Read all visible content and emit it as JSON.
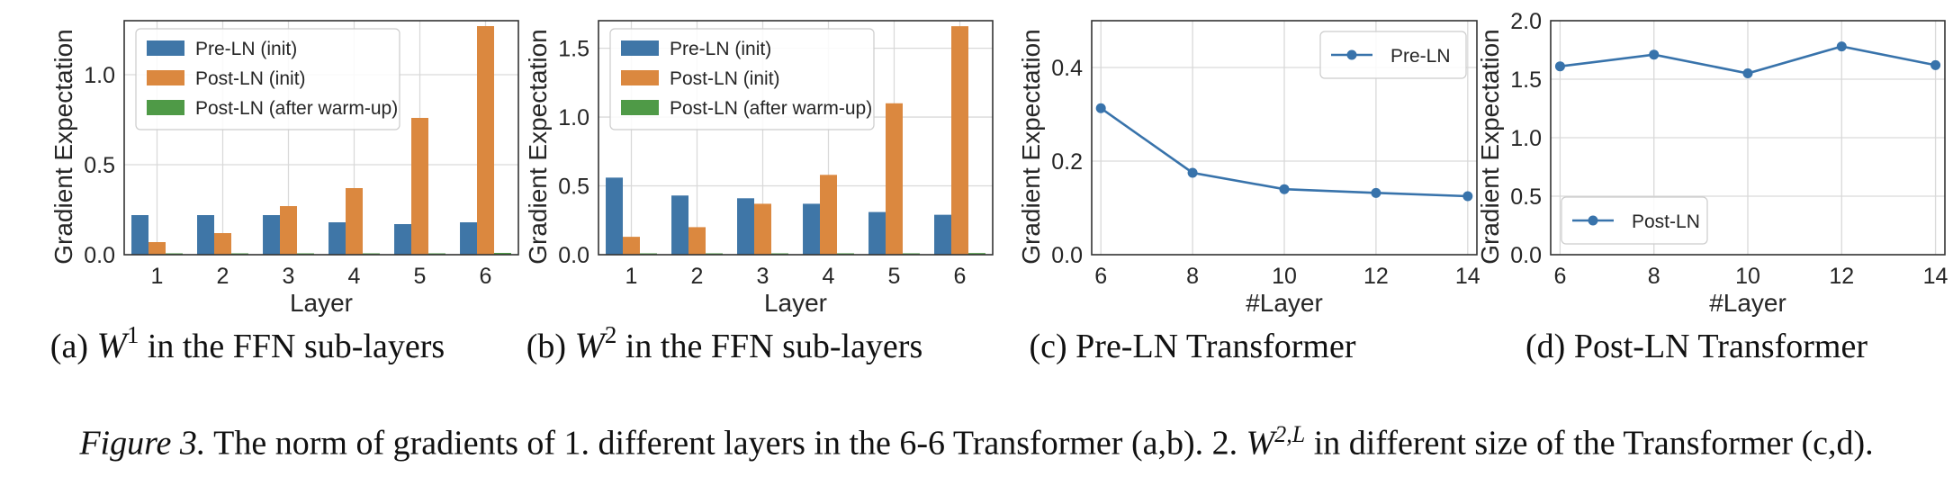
{
  "colors": {
    "pre_ln": "#3f76a7",
    "post_ln_init": "#db883f",
    "post_ln_warmup": "#4f9a47",
    "line": "#3873ab",
    "grid": "#d9d9d9",
    "frame": "#333333"
  },
  "caption": {
    "label": "Figure 3.",
    "text_before": " The norm of gradients of 1. different layers in the 6-6 Transformer (a,b). 2. ",
    "math_base": "W",
    "math_sup": "2,L",
    "text_after": " in different size of the Transformer (c,d)."
  },
  "chart_data": [
    {
      "id": "a",
      "type": "bar",
      "subcaption": {
        "prefix": "(a)",
        "math_base": "W",
        "math_sup": "1",
        "text": "in the FFN sub-layers"
      },
      "xlabel": "Layer",
      "ylabel": "Gradient Expectation",
      "ylim": [
        0,
        1.3
      ],
      "yticks": [
        0.0,
        0.5,
        1.0
      ],
      "ytick_labels": [
        "0.0",
        "0.5",
        "1.0"
      ],
      "grid": true,
      "legend_position": "top-left",
      "categories": [
        "1",
        "2",
        "3",
        "4",
        "5",
        "6"
      ],
      "series": [
        {
          "name": "Pre-LN (init)",
          "values": [
            0.22,
            0.22,
            0.22,
            0.18,
            0.17,
            0.18
          ]
        },
        {
          "name": "Post-LN (init)",
          "values": [
            0.07,
            0.12,
            0.27,
            0.37,
            0.76,
            1.27
          ]
        },
        {
          "name": "Post-LN (after warm-up)",
          "values": [
            0.003,
            0.003,
            0.004,
            0.004,
            0.006,
            0.01
          ]
        }
      ]
    },
    {
      "id": "b",
      "type": "bar",
      "subcaption": {
        "prefix": "(b)",
        "math_base": "W",
        "math_sup": "2",
        "text": "in the FFN sub-layers"
      },
      "xlabel": "Layer",
      "ylabel": "Gradient Expectation",
      "ylim": [
        0,
        1.7
      ],
      "yticks": [
        0.0,
        0.5,
        1.0,
        1.5
      ],
      "ytick_labels": [
        "0.0",
        "0.5",
        "1.0",
        "1.5"
      ],
      "grid": true,
      "legend_position": "top-left",
      "categories": [
        "1",
        "2",
        "3",
        "4",
        "5",
        "6"
      ],
      "series": [
        {
          "name": "Pre-LN (init)",
          "values": [
            0.56,
            0.43,
            0.41,
            0.37,
            0.31,
            0.29
          ]
        },
        {
          "name": "Post-LN (init)",
          "values": [
            0.13,
            0.2,
            0.37,
            0.58,
            1.1,
            1.66
          ]
        },
        {
          "name": "Post-LN (after warm-up)",
          "values": [
            0.005,
            0.006,
            0.008,
            0.01,
            0.01,
            0.012
          ]
        }
      ]
    },
    {
      "id": "c",
      "type": "line",
      "subcaption": {
        "prefix": "(c)",
        "text": "Pre-LN Transformer"
      },
      "xlabel": "#Layer",
      "ylabel": "Gradient Expectation",
      "xlim": [
        5.8,
        14.2
      ],
      "ylim": [
        0,
        0.5
      ],
      "xticks": [
        6,
        8,
        10,
        12,
        14
      ],
      "xtick_labels": [
        "6",
        "8",
        "10",
        "12",
        "14"
      ],
      "yticks": [
        0.0,
        0.2,
        0.4
      ],
      "ytick_labels": [
        "0.0",
        "0.2",
        "0.4"
      ],
      "grid": true,
      "legend_position": "top-right",
      "x": [
        6,
        8,
        10,
        12,
        14
      ],
      "series": [
        {
          "name": "Pre-LN",
          "values": [
            0.313,
            0.175,
            0.14,
            0.132,
            0.125
          ]
        }
      ]
    },
    {
      "id": "d",
      "type": "line",
      "subcaption": {
        "prefix": "(d)",
        "text": "Post-LN Transformer"
      },
      "xlabel": "#Layer",
      "ylabel": "Gradient Expectation",
      "xlim": [
        5.8,
        14.2
      ],
      "ylim": [
        0,
        2.0
      ],
      "xticks": [
        6,
        8,
        10,
        12,
        14
      ],
      "xtick_labels": [
        "6",
        "8",
        "10",
        "12",
        "14"
      ],
      "yticks": [
        0.0,
        0.5,
        1.0,
        1.5,
        2.0
      ],
      "ytick_labels": [
        "0.0",
        "0.5",
        "1.0",
        "1.5",
        "2.0"
      ],
      "grid": true,
      "legend_position": "bottom-left",
      "x": [
        6,
        8,
        10,
        12,
        14
      ],
      "series": [
        {
          "name": "Post-LN",
          "values": [
            1.61,
            1.71,
            1.55,
            1.78,
            1.62
          ]
        }
      ]
    }
  ]
}
